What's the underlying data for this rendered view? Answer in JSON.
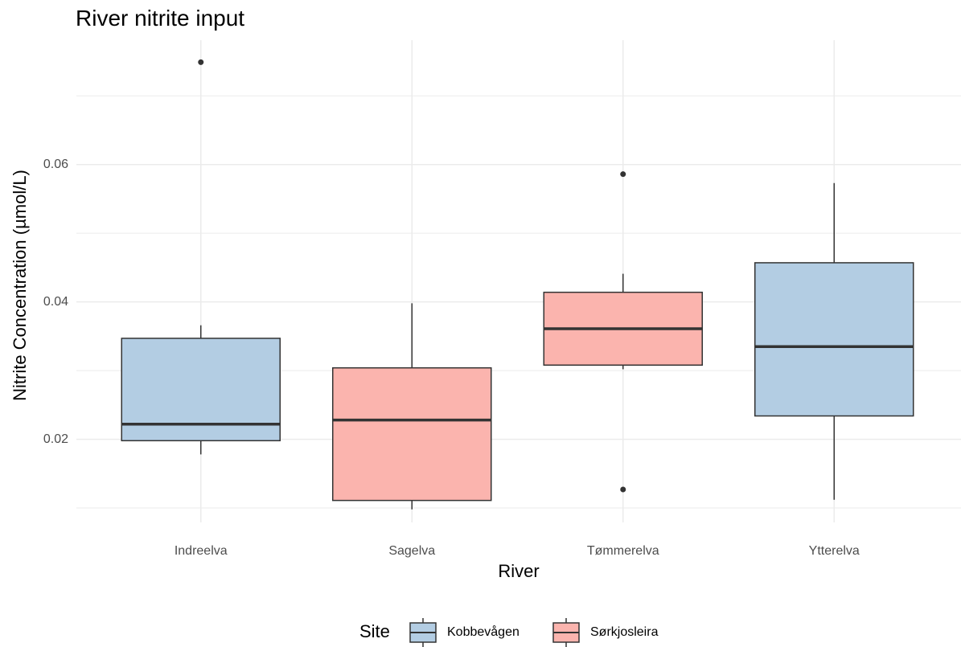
{
  "chart_data": {
    "type": "boxplot",
    "title": "River nitrite input",
    "x_label": "River",
    "y_label": "Nitrite Concentration (µmol/L)",
    "categories": [
      "Indreelva",
      "Sagelva",
      "Tømmerelva",
      "Ytterelva"
    ],
    "legend_title": "Site",
    "legend_position": "bottom",
    "grid": true,
    "ylim": [
      0.0079,
      0.0781
    ],
    "yticks": [
      0.02,
      0.04,
      0.06
    ],
    "minor_yticks": [
      0.01,
      0.03,
      0.05,
      0.07
    ],
    "series": [
      {
        "name": "Kobbevågen",
        "color": "#b3cde3",
        "values": [
          {
            "min": 0.0178,
            "q1": 0.0198,
            "median": 0.0222,
            "q3": 0.0347,
            "max": 0.0366,
            "outliers": [
              0.0749
            ]
          },
          null,
          null,
          {
            "min": 0.0112,
            "q1": 0.0234,
            "median": 0.0335,
            "q3": 0.0457,
            "max": 0.0573,
            "outliers": []
          }
        ]
      },
      {
        "name": "Sørkjosleira",
        "color": "#fbb4ae",
        "values": [
          null,
          {
            "min": 0.0098,
            "q1": 0.0111,
            "median": 0.0228,
            "q3": 0.0304,
            "max": 0.0398,
            "outliers": []
          },
          {
            "min": 0.0302,
            "q1": 0.0308,
            "median": 0.0361,
            "q3": 0.0414,
            "max": 0.0441,
            "outliers": [
              0.0586,
              0.0127
            ]
          },
          null
        ]
      }
    ]
  }
}
